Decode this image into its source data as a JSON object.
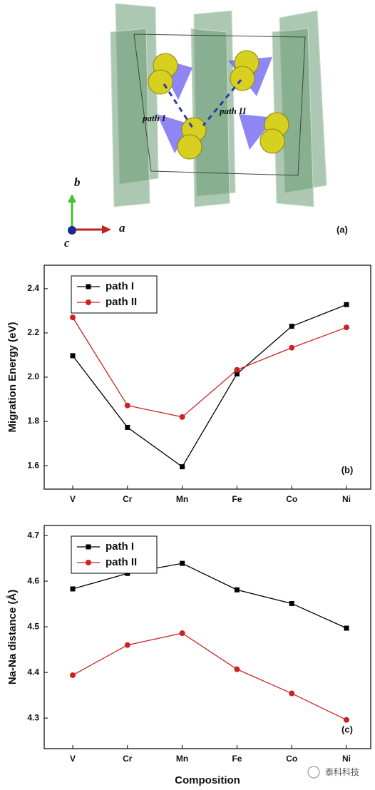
{
  "figure_a": {
    "path_labels": [
      "path I",
      "path II"
    ],
    "axis_labels": {
      "b": "b",
      "a": "a",
      "c": "c"
    },
    "panel_label": "(a)"
  },
  "chart_data": [
    {
      "type": "line",
      "panel_label": "(b)",
      "y_label": "Migration Energy (eV)",
      "categories": [
        "V",
        "Cr",
        "Mn",
        "Fe",
        "Co",
        "Ni"
      ],
      "series": [
        {
          "name": "path I",
          "color": "#000000",
          "marker": "square",
          "values": [
            2.097,
            1.773,
            1.595,
            2.015,
            2.23,
            2.328
          ]
        },
        {
          "name": "path II",
          "color": "#cc2222",
          "marker": "circle",
          "values": [
            2.27,
            1.872,
            1.82,
            2.033,
            2.133,
            2.225
          ]
        }
      ],
      "ylim": [
        1.494,
        2.506
      ],
      "yticks": [
        1.6,
        1.8,
        {
          "value": 2.0,
          "label": "2.0"
        },
        2.2,
        2.4
      ],
      "legend": "upper left"
    },
    {
      "type": "line",
      "panel_label": "(c)",
      "y_label": "Na-Na distance (Å)",
      "x_label": "Composition",
      "categories": [
        "V",
        "Cr",
        "Mn",
        "Fe",
        "Co",
        "Ni"
      ],
      "series": [
        {
          "name": "path I",
          "color": "#000000",
          "marker": "square",
          "values": [
            4.583,
            4.617,
            4.639,
            4.581,
            4.551,
            4.497
          ]
        },
        {
          "name": "path II",
          "color": "#cc2222",
          "marker": "circle",
          "values": [
            4.394,
            4.46,
            4.486,
            4.407,
            4.354,
            4.296
          ]
        }
      ],
      "ylim": [
        4.233,
        4.722
      ],
      "yticks": [
        4.3,
        4.4,
        4.5,
        4.6,
        4.7
      ],
      "legend": "upper left"
    }
  ],
  "watermark": "泰科科技"
}
